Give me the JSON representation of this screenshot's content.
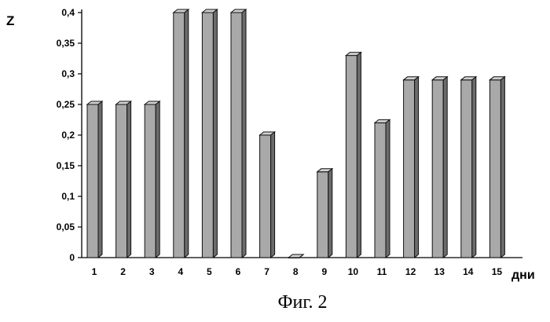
{
  "chart_data": {
    "type": "bar",
    "title": "",
    "ylabel": "Z",
    "xlabel": "дни",
    "caption": "Фиг. 2",
    "ylim": [
      0,
      0.4
    ],
    "y_ticks": [
      "0",
      "0,05",
      "0,1",
      "0,15",
      "0,2",
      "0,25",
      "0,3",
      "0,35",
      "0,4"
    ],
    "y_tick_values": [
      0,
      0.05,
      0.1,
      0.15,
      0.2,
      0.25,
      0.3,
      0.35,
      0.4
    ],
    "categories": [
      "1",
      "2",
      "3",
      "4",
      "5",
      "6",
      "7",
      "8",
      "9",
      "10",
      "11",
      "12",
      "13",
      "14",
      "15"
    ],
    "values": [
      0.25,
      0.25,
      0.25,
      0.4,
      0.4,
      0.4,
      0.2,
      0.0,
      0.14,
      0.33,
      0.22,
      0.29,
      0.29,
      0.29,
      0.29
    ],
    "grid": false,
    "legend": "none",
    "style": "3d-column",
    "colors": {
      "bar_front": "#a9a9a9",
      "bar_side": "#6b6b6b",
      "bar_top": "#d0d0d0",
      "edge": "#111111",
      "axis": "#000000"
    }
  }
}
